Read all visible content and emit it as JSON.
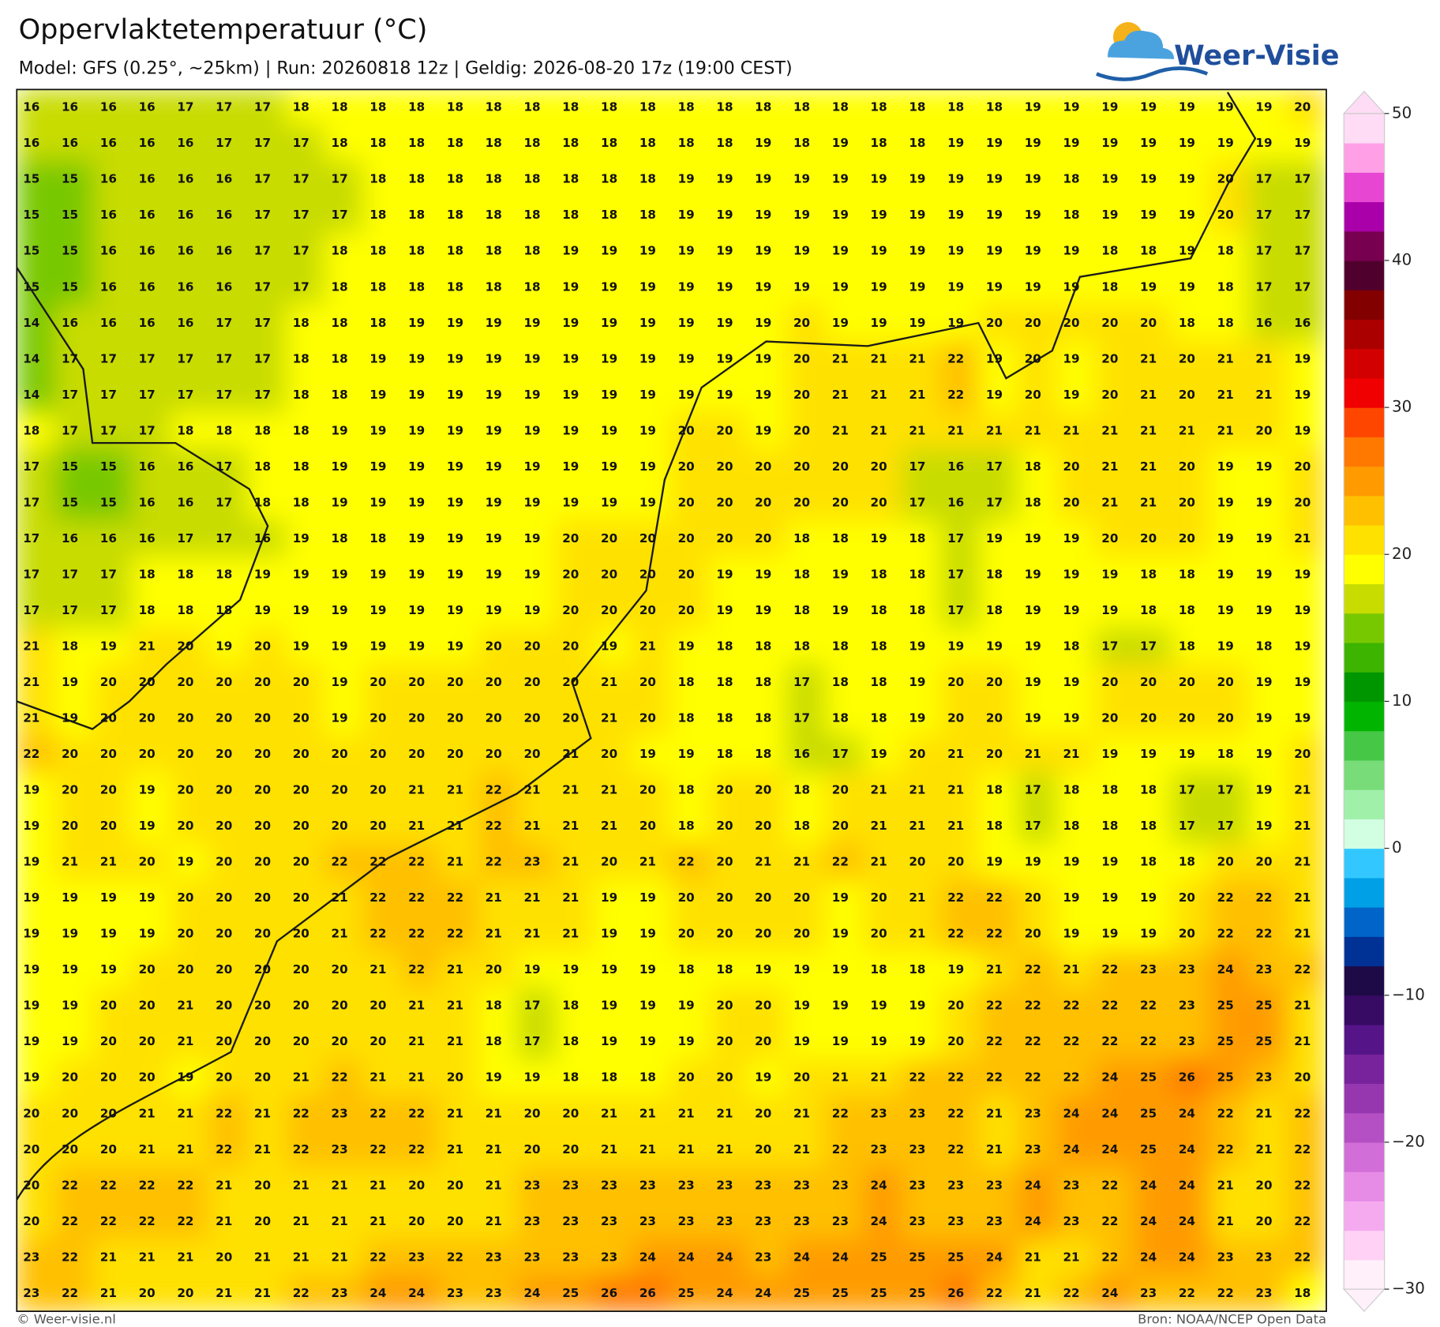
{
  "header": {
    "title": "Oppervlaktetemperatuur (°C)",
    "subtitle": "Model: GFS (0.25°, ~25km)  |  Run: 20260818 12z  |  Geldig: 2026-08-20 17z (19:00 CEST)"
  },
  "logo": "Weer-Visie",
  "map": {
    "type": "value-grid",
    "rows": [
      [
        16,
        16,
        16,
        16,
        17,
        17,
        17,
        18,
        18,
        18,
        18,
        18,
        18,
        18,
        18,
        18,
        18,
        18,
        18,
        18,
        18,
        18,
        18,
        18,
        18,
        18,
        19,
        19,
        19,
        19,
        19,
        19,
        19,
        20
      ],
      [
        16,
        16,
        16,
        16,
        16,
        17,
        17,
        17,
        18,
        18,
        18,
        18,
        18,
        18,
        18,
        18,
        18,
        18,
        18,
        19,
        18,
        19,
        18,
        18,
        19,
        19,
        19,
        19,
        19,
        19,
        19,
        19,
        19,
        19
      ],
      [
        15,
        15,
        16,
        16,
        16,
        16,
        17,
        17,
        17,
        18,
        18,
        18,
        18,
        18,
        18,
        18,
        18,
        19,
        19,
        19,
        19,
        19,
        19,
        19,
        19,
        19,
        19,
        18,
        19,
        19,
        19,
        20,
        17,
        17
      ],
      [
        15,
        15,
        16,
        16,
        16,
        16,
        17,
        17,
        17,
        18,
        18,
        18,
        18,
        18,
        18,
        18,
        18,
        19,
        19,
        19,
        19,
        19,
        19,
        19,
        19,
        19,
        19,
        18,
        19,
        19,
        19,
        20,
        17,
        17
      ],
      [
        15,
        15,
        16,
        16,
        16,
        16,
        17,
        17,
        18,
        18,
        18,
        18,
        18,
        18,
        19,
        19,
        19,
        19,
        19,
        19,
        19,
        19,
        19,
        19,
        19,
        19,
        19,
        19,
        18,
        18,
        19,
        18,
        17,
        17
      ],
      [
        15,
        15,
        16,
        16,
        16,
        16,
        17,
        17,
        18,
        18,
        18,
        18,
        18,
        18,
        19,
        19,
        19,
        19,
        19,
        19,
        19,
        19,
        19,
        19,
        19,
        19,
        19,
        19,
        18,
        19,
        19,
        18,
        17,
        17
      ],
      [
        14,
        16,
        16,
        16,
        16,
        17,
        17,
        18,
        18,
        18,
        19,
        19,
        19,
        19,
        19,
        19,
        19,
        19,
        19,
        19,
        20,
        19,
        19,
        19,
        19,
        20,
        20,
        20,
        20,
        20,
        18,
        18,
        16,
        16
      ],
      [
        14,
        17,
        17,
        17,
        17,
        17,
        17,
        18,
        18,
        19,
        19,
        19,
        19,
        19,
        19,
        19,
        19,
        19,
        19,
        19,
        20,
        21,
        21,
        21,
        22,
        19,
        20,
        19,
        20,
        21,
        20,
        21,
        21,
        19
      ],
      [
        14,
        17,
        17,
        17,
        17,
        17,
        17,
        18,
        18,
        19,
        19,
        19,
        19,
        19,
        19,
        19,
        19,
        19,
        19,
        19,
        20,
        21,
        21,
        21,
        22,
        19,
        20,
        19,
        20,
        21,
        20,
        21,
        21,
        19
      ],
      [
        18,
        17,
        17,
        17,
        18,
        18,
        18,
        18,
        19,
        19,
        19,
        19,
        19,
        19,
        19,
        19,
        19,
        20,
        20,
        19,
        20,
        21,
        21,
        21,
        21,
        21,
        21,
        21,
        21,
        21,
        21,
        21,
        20,
        19
      ],
      [
        17,
        15,
        15,
        16,
        16,
        17,
        18,
        18,
        19,
        19,
        19,
        19,
        19,
        19,
        19,
        19,
        19,
        20,
        20,
        20,
        20,
        20,
        20,
        17,
        16,
        17,
        18,
        20,
        21,
        21,
        20,
        19,
        19,
        20
      ],
      [
        17,
        15,
        15,
        16,
        16,
        17,
        18,
        18,
        19,
        19,
        19,
        19,
        19,
        19,
        19,
        19,
        19,
        20,
        20,
        20,
        20,
        20,
        20,
        17,
        16,
        17,
        18,
        20,
        21,
        21,
        20,
        19,
        19,
        20
      ],
      [
        17,
        16,
        16,
        16,
        17,
        17,
        16,
        19,
        18,
        18,
        19,
        19,
        19,
        19,
        20,
        20,
        20,
        20,
        20,
        20,
        18,
        18,
        19,
        18,
        17,
        19,
        19,
        19,
        20,
        20,
        20,
        19,
        19,
        21
      ],
      [
        17,
        17,
        17,
        18,
        18,
        18,
        19,
        19,
        19,
        19,
        19,
        19,
        19,
        19,
        20,
        20,
        20,
        20,
        19,
        19,
        18,
        19,
        18,
        18,
        17,
        18,
        19,
        19,
        19,
        18,
        18,
        19,
        19,
        19
      ],
      [
        17,
        17,
        17,
        18,
        18,
        18,
        19,
        19,
        19,
        19,
        19,
        19,
        19,
        19,
        20,
        20,
        20,
        20,
        19,
        19,
        18,
        19,
        18,
        18,
        17,
        18,
        19,
        19,
        19,
        18,
        18,
        19,
        19,
        19
      ],
      [
        21,
        18,
        19,
        21,
        20,
        19,
        20,
        19,
        19,
        19,
        19,
        19,
        20,
        20,
        20,
        19,
        21,
        19,
        18,
        18,
        18,
        18,
        18,
        19,
        19,
        19,
        19,
        18,
        17,
        17,
        18,
        19,
        18,
        19
      ],
      [
        21,
        19,
        20,
        20,
        20,
        20,
        20,
        20,
        19,
        20,
        20,
        20,
        20,
        20,
        20,
        21,
        20,
        18,
        18,
        18,
        17,
        18,
        18,
        19,
        20,
        20,
        19,
        19,
        20,
        20,
        20,
        20,
        19,
        19
      ],
      [
        21,
        19,
        20,
        20,
        20,
        20,
        20,
        20,
        19,
        20,
        20,
        20,
        20,
        20,
        20,
        21,
        20,
        18,
        18,
        18,
        17,
        18,
        18,
        19,
        20,
        20,
        19,
        19,
        20,
        20,
        20,
        20,
        19,
        19
      ],
      [
        22,
        20,
        20,
        20,
        20,
        20,
        20,
        20,
        20,
        20,
        20,
        20,
        20,
        20,
        21,
        20,
        19,
        19,
        18,
        18,
        16,
        17,
        19,
        20,
        21,
        20,
        21,
        21,
        19,
        19,
        19,
        18,
        19,
        20
      ],
      [
        19,
        20,
        20,
        19,
        20,
        20,
        20,
        20,
        20,
        20,
        21,
        21,
        22,
        21,
        21,
        21,
        20,
        18,
        20,
        20,
        18,
        20,
        21,
        21,
        21,
        18,
        17,
        18,
        18,
        18,
        17,
        17,
        19,
        21
      ],
      [
        19,
        20,
        20,
        19,
        20,
        20,
        20,
        20,
        20,
        20,
        21,
        21,
        22,
        21,
        21,
        21,
        20,
        18,
        20,
        20,
        18,
        20,
        21,
        21,
        21,
        18,
        17,
        18,
        18,
        18,
        17,
        17,
        19,
        21
      ],
      [
        19,
        21,
        21,
        20,
        19,
        20,
        20,
        20,
        22,
        22,
        22,
        21,
        22,
        23,
        21,
        20,
        21,
        22,
        20,
        21,
        21,
        22,
        21,
        20,
        20,
        19,
        19,
        19,
        19,
        18,
        18,
        20,
        20,
        21
      ],
      [
        19,
        19,
        19,
        19,
        20,
        20,
        20,
        20,
        21,
        22,
        22,
        22,
        21,
        21,
        21,
        19,
        19,
        20,
        20,
        20,
        20,
        19,
        20,
        21,
        22,
        22,
        20,
        19,
        19,
        19,
        20,
        22,
        22,
        21
      ],
      [
        19,
        19,
        19,
        19,
        20,
        20,
        20,
        20,
        21,
        22,
        22,
        22,
        21,
        21,
        21,
        19,
        19,
        20,
        20,
        20,
        20,
        19,
        20,
        21,
        22,
        22,
        20,
        19,
        19,
        19,
        20,
        22,
        22,
        21
      ],
      [
        19,
        19,
        19,
        20,
        20,
        20,
        20,
        20,
        20,
        21,
        22,
        21,
        20,
        19,
        19,
        19,
        19,
        18,
        18,
        19,
        19,
        19,
        18,
        18,
        19,
        21,
        22,
        21,
        22,
        23,
        23,
        24,
        23,
        22
      ],
      [
        19,
        19,
        20,
        20,
        21,
        20,
        20,
        20,
        20,
        20,
        21,
        21,
        18,
        17,
        18,
        19,
        19,
        19,
        20,
        20,
        19,
        19,
        19,
        19,
        20,
        22,
        22,
        22,
        22,
        22,
        23,
        25,
        25,
        21
      ],
      [
        19,
        19,
        20,
        20,
        21,
        20,
        20,
        20,
        20,
        20,
        21,
        21,
        18,
        17,
        18,
        19,
        19,
        19,
        20,
        20,
        19,
        19,
        19,
        19,
        20,
        22,
        22,
        22,
        22,
        22,
        23,
        25,
        25,
        21
      ],
      [
        19,
        20,
        20,
        20,
        19,
        20,
        20,
        21,
        22,
        21,
        21,
        20,
        19,
        19,
        18,
        18,
        18,
        20,
        20,
        19,
        20,
        21,
        21,
        22,
        22,
        22,
        22,
        22,
        24,
        25,
        26,
        25,
        23,
        20
      ],
      [
        20,
        20,
        20,
        21,
        21,
        22,
        21,
        22,
        23,
        22,
        22,
        21,
        21,
        20,
        20,
        21,
        21,
        21,
        21,
        20,
        21,
        22,
        23,
        23,
        22,
        21,
        23,
        24,
        24,
        25,
        24,
        22,
        21,
        22
      ],
      [
        20,
        20,
        20,
        21,
        21,
        22,
        21,
        22,
        23,
        22,
        22,
        21,
        21,
        20,
        20,
        21,
        21,
        21,
        21,
        20,
        21,
        22,
        23,
        23,
        22,
        21,
        23,
        24,
        24,
        25,
        24,
        22,
        21,
        22
      ],
      [
        20,
        22,
        22,
        22,
        22,
        21,
        20,
        21,
        21,
        21,
        20,
        20,
        21,
        23,
        23,
        23,
        23,
        23,
        23,
        23,
        23,
        23,
        24,
        23,
        23,
        23,
        24,
        23,
        22,
        24,
        24,
        21,
        20,
        22
      ],
      [
        20,
        22,
        22,
        22,
        22,
        21,
        20,
        21,
        21,
        21,
        20,
        20,
        21,
        23,
        23,
        23,
        23,
        23,
        23,
        23,
        23,
        23,
        24,
        23,
        23,
        23,
        24,
        23,
        22,
        24,
        24,
        21,
        20,
        22
      ],
      [
        23,
        22,
        21,
        21,
        21,
        20,
        21,
        21,
        21,
        22,
        23,
        22,
        23,
        23,
        23,
        23,
        24,
        24,
        24,
        23,
        24,
        24,
        25,
        25,
        25,
        24,
        21,
        21,
        22,
        24,
        24,
        23,
        23,
        22
      ],
      [
        23,
        22,
        21,
        20,
        20,
        21,
        21,
        22,
        23,
        24,
        24,
        23,
        23,
        24,
        25,
        26,
        26,
        25,
        24,
        24,
        25,
        25,
        25,
        25,
        26,
        22,
        21,
        22,
        24,
        23,
        22,
        22,
        23,
        18
      ]
    ]
  },
  "colorbar": {
    "lim": [
      -30,
      50
    ],
    "ticks": [
      50,
      40,
      30,
      20,
      10,
      0,
      {
        "value": -10,
        "label": "−10"
      },
      {
        "value": -20,
        "label": "−20"
      },
      {
        "value": -30,
        "label": "−30"
      }
    ],
    "colors": [
      "#fff0fa",
      "#ffd2f5",
      "#f5aaf0",
      "#e68ce6",
      "#d26ed7",
      "#b450c3",
      "#9637af",
      "#78239b",
      "#551487",
      "#370a64",
      "#1e0a46",
      "#003296",
      "#0064c8",
      "#00a0e6",
      "#32c8ff",
      "#d2ffe1",
      "#a0f0aa",
      "#78dc78",
      "#46c846",
      "#00b400",
      "#009600",
      "#3cb400",
      "#78c800",
      "#c8dc00",
      "#ffff00",
      "#ffe100",
      "#ffc000",
      "#ff9b00",
      "#ff7800",
      "#ff4600",
      "#f00000",
      "#d20000",
      "#aa0000",
      "#820000",
      "#50002d",
      "#780050",
      "#aa00aa",
      "#e646d2",
      "#ffa0e6",
      "#ffdcf5"
    ]
  },
  "footer": {
    "left": "© Weer-visie.nl",
    "right": "Bron: NOAA/NCEP Open Data"
  }
}
